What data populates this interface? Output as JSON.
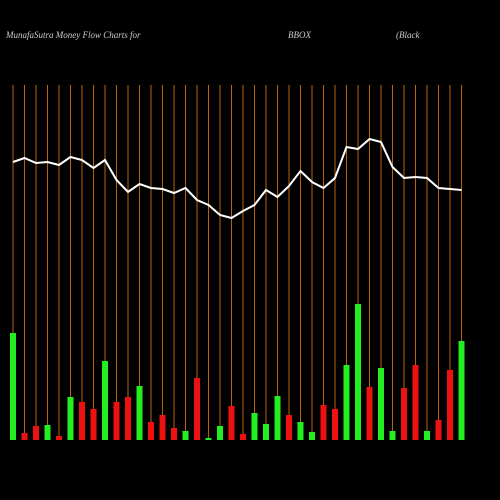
{
  "chart_data": {
    "type": "bar",
    "title": "MunafaSutra  Money Flow  Charts for",
    "symbol": "BBOX",
    "company": "(Black",
    "ylim": [
      0,
      440
    ],
    "grid": true,
    "grid_color": "#b8620a",
    "bars": {
      "values": [
        107,
        7,
        14,
        15,
        4,
        43,
        38,
        31,
        79,
        38,
        43,
        54,
        18,
        25,
        12,
        9,
        62,
        2,
        14,
        34,
        6,
        27,
        16,
        44,
        25,
        18,
        8,
        35,
        31,
        75,
        136,
        53,
        72,
        9,
        52,
        75,
        9,
        20,
        70,
        99
      ],
      "colors": [
        "#22ee22",
        "#ee1111",
        "#ee1111",
        "#22ee22",
        "#ee1111",
        "#22ee22",
        "#ee1111",
        "#ee1111",
        "#22ee22",
        "#ee1111",
        "#ee1111",
        "#22ee22",
        "#ee1111",
        "#ee1111",
        "#ee1111",
        "#22ee22",
        "#ee1111",
        "#22ee22",
        "#22ee22",
        "#ee1111",
        "#ee1111",
        "#22ee22",
        "#22ee22",
        "#22ee22",
        "#ee1111",
        "#22ee22",
        "#22ee22",
        "#ee1111",
        "#ee1111",
        "#22ee22",
        "#22ee22",
        "#ee1111",
        "#22ee22",
        "#22ee22",
        "#ee1111",
        "#ee1111",
        "#22ee22",
        "#ee1111",
        "#ee1111",
        "#22ee22"
      ]
    },
    "line": {
      "color": "#ffffff",
      "values": [
        278,
        282,
        277,
        278,
        275,
        283,
        280,
        272,
        280,
        260,
        248,
        256,
        252,
        251,
        247,
        252,
        240,
        235,
        225,
        222,
        229,
        235,
        250,
        243,
        254,
        269,
        258,
        252,
        262,
        293,
        291,
        301,
        298,
        273,
        262,
        263,
        262,
        252,
        251,
        250
      ]
    }
  }
}
